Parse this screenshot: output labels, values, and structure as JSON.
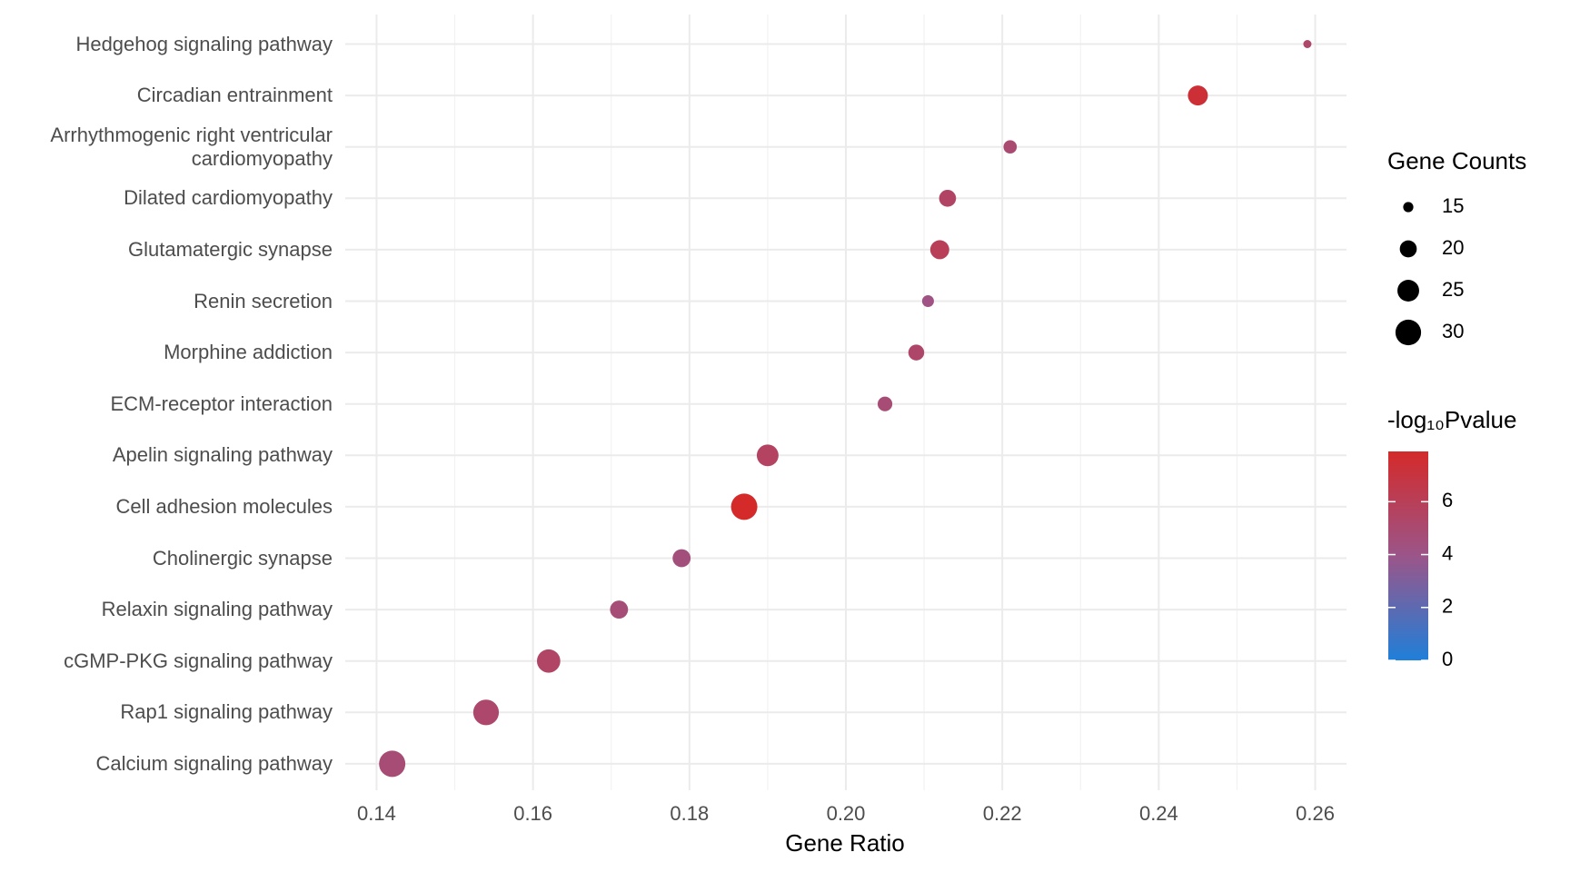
{
  "chart_data": {
    "type": "dot",
    "x_label": "Gene Ratio",
    "categories": [
      "Hedgehog signaling pathway",
      "Circadian entrainment",
      "Arrhythmogenic right ventricular cardiomyopathy",
      "Dilated cardiomyopathy",
      "Glutamatergic synapse",
      "Renin secretion",
      "Morphine addiction",
      "ECM-receptor interaction",
      "Apelin signaling pathway",
      "Cell adhesion molecules",
      "Cholinergic synapse",
      "Relaxin signaling pathway",
      "cGMP-PKG signaling pathway",
      "Rap1 signaling pathway",
      "Calcium signaling pathway"
    ],
    "values": [
      0.259,
      0.245,
      0.221,
      0.213,
      0.212,
      0.2105,
      0.209,
      0.205,
      0.19,
      0.187,
      0.179,
      0.171,
      0.162,
      0.154,
      0.142
    ],
    "sizes": [
      14,
      23,
      17,
      20,
      22,
      16,
      19,
      18,
      25,
      31,
      21,
      21,
      27,
      30,
      31
    ],
    "pvalues": [
      5.2,
      7.4,
      5.0,
      5.5,
      6.0,
      4.2,
      5.3,
      4.8,
      5.6,
      7.9,
      4.5,
      4.7,
      5.4,
      5.2,
      4.8
    ],
    "xlim": [
      0.136,
      0.264
    ],
    "xticks": [
      {
        "value": 0.14,
        "label": "0.14"
      },
      {
        "value": 0.16,
        "label": "0.16"
      },
      {
        "value": 0.18,
        "label": "0.18"
      },
      {
        "value": 0.2,
        "label": "0.20"
      },
      {
        "value": 0.22,
        "label": "0.22"
      },
      {
        "value": 0.24,
        "label": "0.24"
      },
      {
        "value": 0.26,
        "label": "0.26"
      }
    ],
    "grid": true,
    "size_title": "Gene Counts",
    "size_ticks": [
      15,
      20,
      25,
      30
    ],
    "color_title": "-log₁₀Pvalue",
    "color_lim": [
      0,
      7.9
    ],
    "color_ticks": [
      0,
      2,
      4,
      6
    ],
    "colors": [
      "#1f7fd9",
      "#9b5589",
      "#d42a2a"
    ]
  }
}
